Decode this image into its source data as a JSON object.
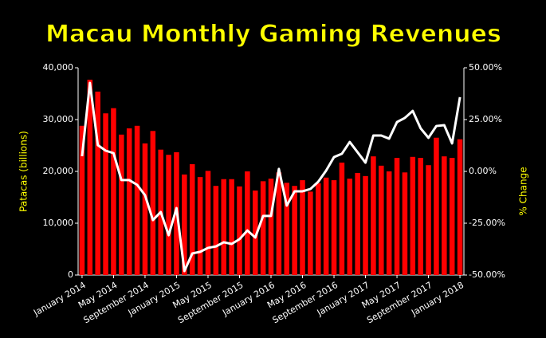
{
  "chart_data": {
    "type": "bar_line",
    "title": "Macau Monthly Gaming Revenues",
    "ylabel": "Patacas (billions)",
    "y2label": "% Change",
    "categories": [
      "January 2014",
      null,
      null,
      null,
      "May 2014",
      null,
      null,
      null,
      "September 2014",
      null,
      null,
      null,
      "January 2015",
      null,
      null,
      null,
      "May 2015",
      null,
      null,
      null,
      "September 2015",
      null,
      null,
      null,
      "January 2016",
      null,
      null,
      null,
      "May 2016",
      null,
      null,
      null,
      "September 2016",
      null,
      null,
      null,
      "January 2017",
      null,
      null,
      null,
      "May 2017",
      null,
      null,
      null,
      "September 2017",
      null,
      null,
      null,
      "January 2018"
    ],
    "series": [
      {
        "type": "bar",
        "color": "#ff0000",
        "values": [
          28800,
          37700,
          35400,
          31200,
          32200,
          27100,
          28300,
          28800,
          25400,
          27800,
          24200,
          23200,
          23700,
          19400,
          21400,
          18900,
          20100,
          17200,
          18500,
          18500,
          17100,
          20000,
          16300,
          18100,
          18600,
          19800,
          17800,
          17200,
          18300,
          16100,
          17700,
          18800,
          18300,
          21700,
          18600,
          19700,
          19100,
          22900,
          21100,
          20000,
          22600,
          19800,
          22800,
          22600,
          21200,
          26500,
          22900,
          22600,
          26200
        ]
      },
      {
        "type": "line",
        "axis": "y2",
        "color": "#ffffff",
        "values": [
          7.3,
          42.7,
          12.7,
          10,
          8.8,
          -4.2,
          -4.2,
          -6.5,
          -11.5,
          -23.5,
          -19.6,
          -30.8,
          -17.7,
          -48.1,
          -39.6,
          -38.8,
          -36.9,
          -36.2,
          -34.2,
          -35,
          -32.7,
          -28.5,
          -31.9,
          -21.5,
          -21.5,
          1.2,
          -16.5,
          -9.6,
          -9.6,
          -8.5,
          -5,
          0.4,
          6.9,
          8.5,
          14.2,
          9.2,
          4.2,
          17.3,
          17.3,
          15.8,
          23.8,
          25.8,
          29.2,
          20.8,
          16.2,
          21.9,
          22.3,
          13.5,
          35.8
        ]
      }
    ],
    "ylim": [
      0,
      40000
    ],
    "yticks": [
      0,
      {
        "value": 10000,
        "label": "10,000"
      },
      {
        "value": 20000,
        "label": "20,000"
      },
      {
        "value": 30000,
        "label": "30,000"
      },
      {
        "value": 40000,
        "label": "40,000"
      }
    ],
    "y2lim": [
      -50,
      50
    ],
    "y2ticks": [
      {
        "value": -50,
        "label": "-50.00%"
      },
      {
        "value": -25,
        "label": "-25.00%"
      },
      {
        "value": 0,
        "label": "0.00%"
      },
      {
        "value": 25,
        "label": "25.00%"
      },
      {
        "value": 50,
        "label": "50.00%"
      }
    ],
    "title_color": "#ffff00",
    "label_color": "#ffff00"
  }
}
